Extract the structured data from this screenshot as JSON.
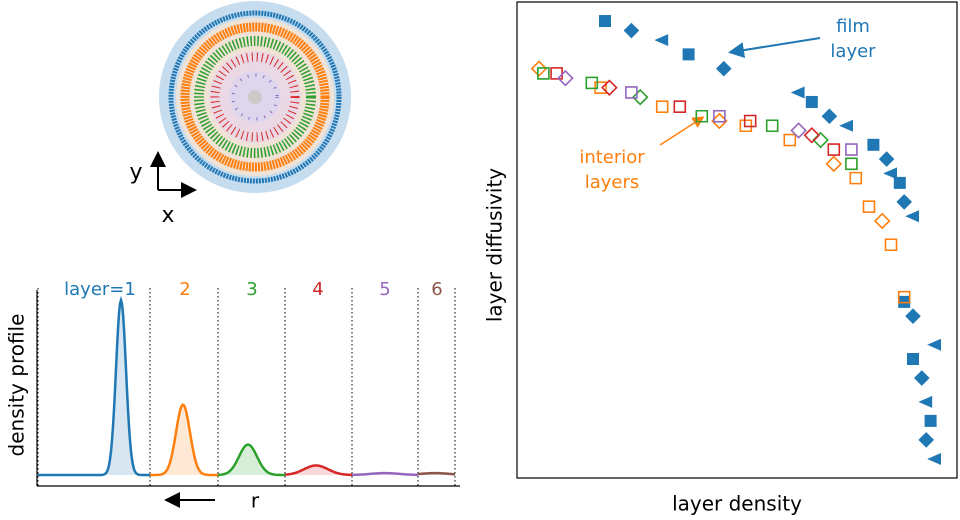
{
  "inset": {
    "x_label": "x",
    "y_label": "y"
  },
  "chart_data": [
    {
      "type": "profile",
      "y_label": "density profile",
      "x_label": "r",
      "categories": [
        "layer=1",
        "2",
        "3",
        "4",
        "5",
        "6"
      ],
      "values": [
        0.92,
        0.37,
        0.16,
        0.05,
        0.01,
        0.01
      ],
      "colors": [
        "#1f77b4",
        "#ff7f0e",
        "#2ca02c",
        "#d62728",
        "#9467bd",
        "#8c564b"
      ],
      "ylim": [
        0,
        1
      ]
    },
    {
      "type": "scatter",
      "x_label": "layer density",
      "y_label": "layer diffusivity",
      "xlim": [
        0,
        1
      ],
      "ylim": [
        0,
        1
      ],
      "annotations": [
        [
          "film",
          "layer"
        ],
        [
          "interior",
          "layers"
        ]
      ],
      "series": [
        {
          "color": "#1f77b4",
          "filled": true,
          "x": [
            0.2,
            0.26,
            0.33,
            0.39,
            0.47,
            0.64,
            0.67,
            0.71,
            0.75,
            0.81,
            0.84,
            0.85,
            0.87,
            0.88,
            0.9,
            0.88,
            0.9,
            0.95,
            0.9,
            0.92,
            0.93,
            0.94,
            0.93,
            0.95
          ],
          "values": [
            0.96,
            0.94,
            0.92,
            0.89,
            0.86,
            0.81,
            0.79,
            0.76,
            0.74,
            0.7,
            0.67,
            0.64,
            0.62,
            0.58,
            0.55,
            0.37,
            0.34,
            0.28,
            0.25,
            0.21,
            0.16,
            0.12,
            0.08,
            0.04
          ]
        },
        {
          "color": "#ff7f0e",
          "filled": false,
          "x": [
            0.05,
            0.19,
            0.33,
            0.46,
            0.52,
            0.62,
            0.72,
            0.77,
            0.8,
            0.83,
            0.85,
            0.88
          ],
          "values": [
            0.86,
            0.82,
            0.78,
            0.75,
            0.74,
            0.71,
            0.66,
            0.63,
            0.57,
            0.54,
            0.49,
            0.38
          ]
        },
        {
          "color": "#2ca02c",
          "filled": false,
          "x": [
            0.06,
            0.17,
            0.28,
            0.42,
            0.58,
            0.69,
            0.76
          ],
          "values": [
            0.85,
            0.83,
            0.8,
            0.76,
            0.74,
            0.71,
            0.66
          ]
        },
        {
          "color": "#d62728",
          "filled": false,
          "x": [
            0.09,
            0.21,
            0.37,
            0.53,
            0.67,
            0.72
          ],
          "values": [
            0.85,
            0.82,
            0.78,
            0.75,
            0.72,
            0.69
          ]
        },
        {
          "color": "#9467bd",
          "filled": false,
          "x": [
            0.11,
            0.26,
            0.46,
            0.64,
            0.76
          ],
          "values": [
            0.84,
            0.81,
            0.76,
            0.73,
            0.69
          ]
        }
      ]
    }
  ]
}
